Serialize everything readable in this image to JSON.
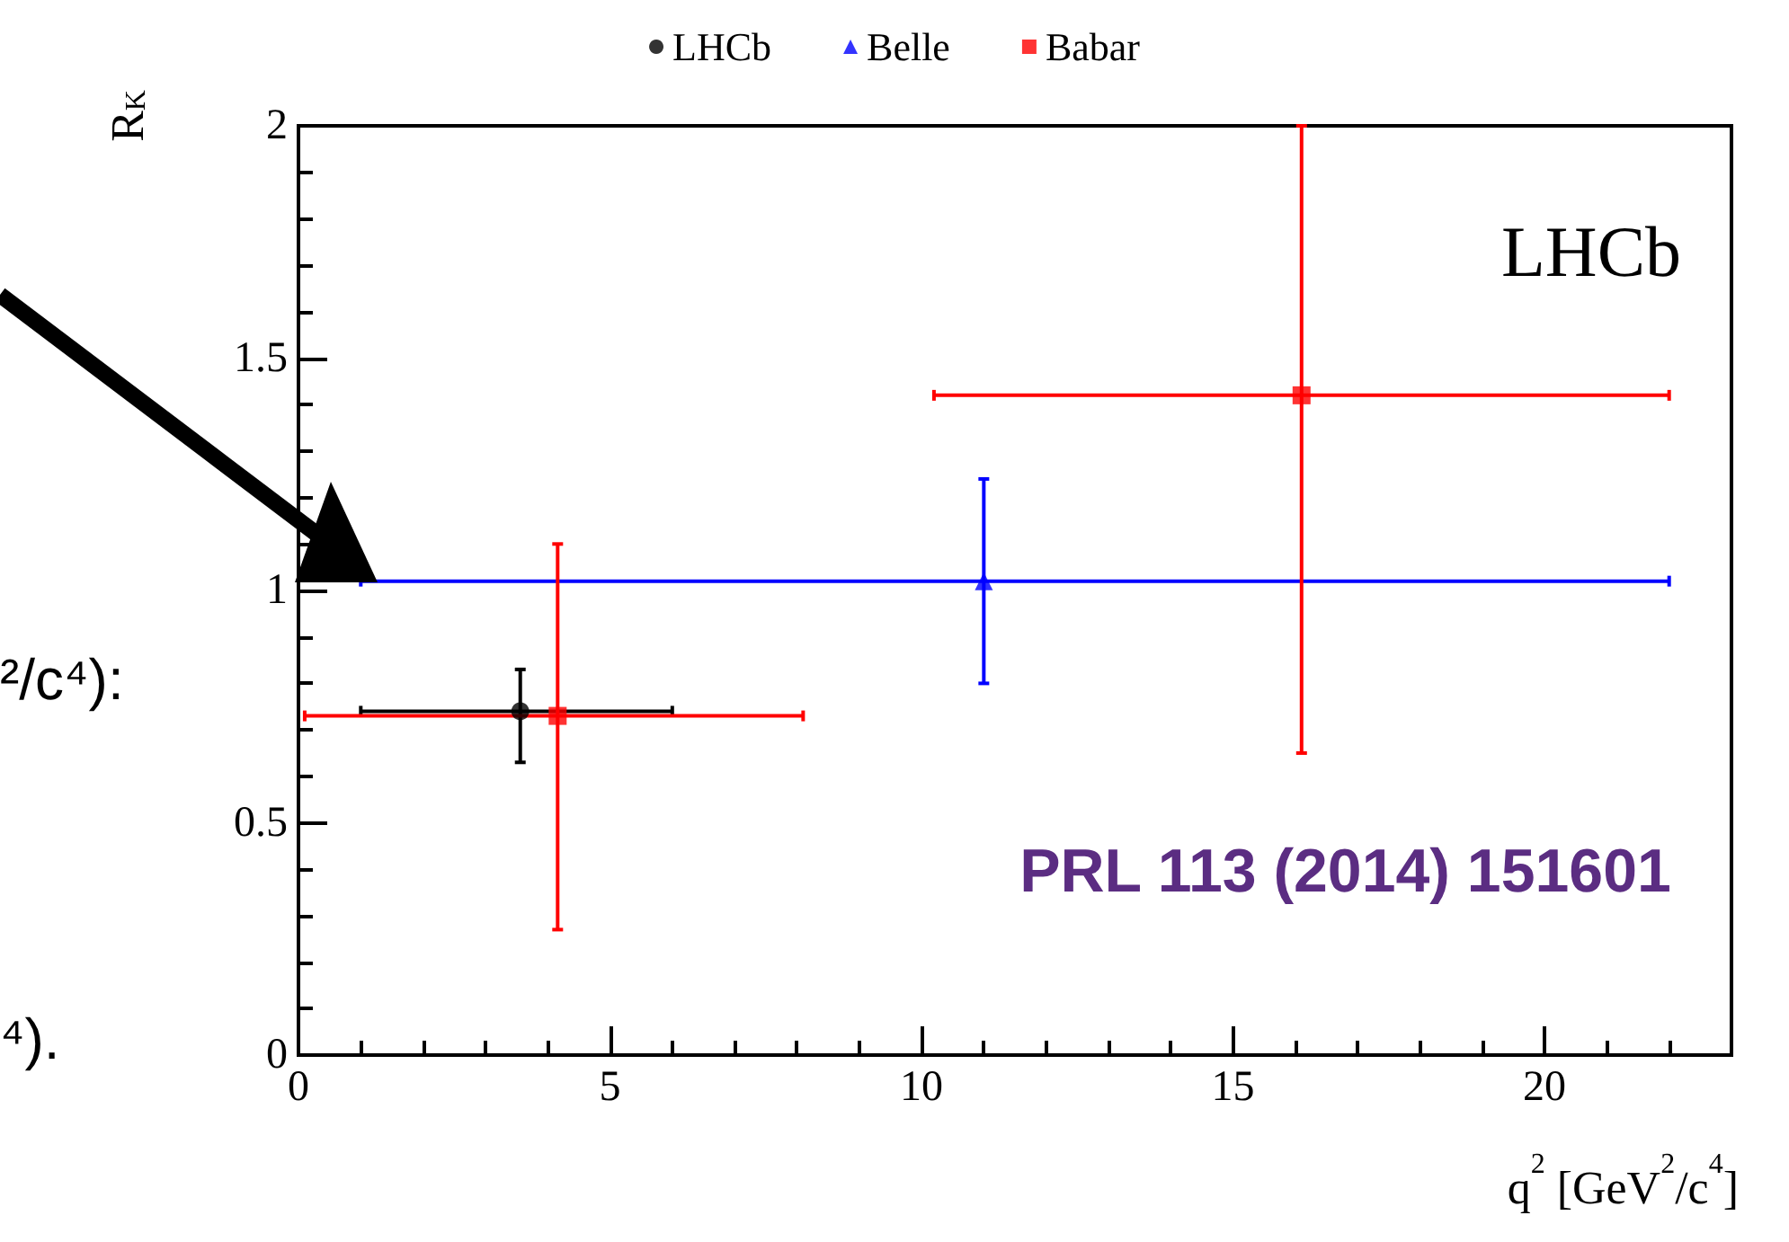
{
  "chart_data": {
    "type": "scatter",
    "xlabel": "q$^{2}$ [GeV$^{2}$/c$^{4}$]",
    "ylabel": "R$_{K}$",
    "xlim": [
      0,
      23
    ],
    "xticks": [
      0,
      5,
      10,
      15,
      20
    ],
    "ylim": [
      0,
      2
    ],
    "yticks": [
      0,
      0.5,
      1,
      1.5,
      2
    ],
    "legend": "top",
    "grid": false,
    "series": [
      {
        "name": "LHCb",
        "color": "#000000",
        "marker": "circle",
        "x": [
          3.56
        ],
        "values": [
          0.74
        ],
        "errors": [
          [
            0.63,
            0.83
          ]
        ],
        "xerrors": [
          [
            1,
            6
          ]
        ]
      },
      {
        "name": "Belle",
        "color": "#0000ff",
        "marker": "triangle",
        "x": [
          11
        ],
        "values": [
          1.02
        ],
        "errors": [
          [
            0.8,
            1.24
          ]
        ],
        "xerrors": [
          [
            1,
            22
          ]
        ]
      },
      {
        "name": "Babar",
        "color": "#ff0000",
        "marker": "square",
        "x": [
          4.16,
          16.1
        ],
        "values": [
          0.73,
          1.42
        ],
        "errors": [
          [
            0.27,
            1.1
          ],
          [
            0.65,
            2
          ]
        ],
        "xerrors": [
          [
            0.1,
            8.1
          ],
          [
            10.2,
            22
          ]
        ]
      }
    ],
    "annotations": [
      "LHCb",
      "PRL 113 (2014) 151601",
      "²/c⁴):",
      "⁴)."
    ]
  }
}
